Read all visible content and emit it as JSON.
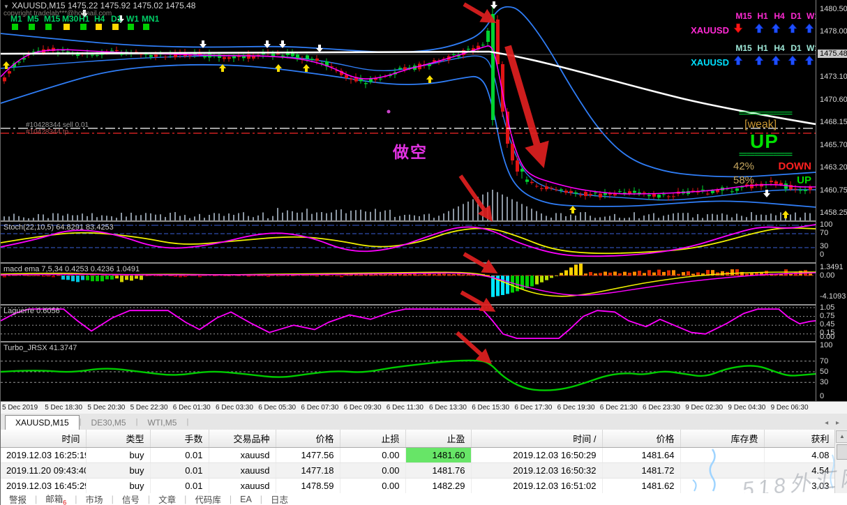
{
  "window": {
    "title": "XAUUSD,M15  1475.22 1475.92 1475.02 1475.48",
    "copyright": "copyright tradelab***@hotmail.com"
  },
  "timeframes": {
    "labels": [
      "M1",
      "M5",
      "M15",
      "M30",
      "H1",
      "H4",
      "D1",
      "W1",
      "MN1"
    ],
    "square_colors": [
      "#00d000",
      "#00d000",
      "#00d000",
      "#ffd700",
      "#00d000",
      "#ffd700",
      "#ffd700",
      "#00d000",
      "#00d000"
    ]
  },
  "chart": {
    "order_line_label": "#10428344 sell 0.01",
    "tp_line_label": "#10428344 tp",
    "short_annotation": "做空",
    "signal_panels": [
      {
        "symbol": "XAUUSD",
        "color": "#ff2ad4",
        "timeframes": [
          "M15",
          "H1",
          "H4",
          "D1",
          "W1"
        ],
        "directions": [
          "down",
          "up",
          "up",
          "up",
          "up"
        ]
      },
      {
        "symbol": "XAUUSD",
        "color": "#00e0ff",
        "timeframes": [
          "M15",
          "H1",
          "H4",
          "D1",
          "W1"
        ],
        "directions": [
          "up",
          "up",
          "up",
          "up",
          "up"
        ]
      }
    ],
    "trend_box": {
      "sep": "==============",
      "weak": "[weak]",
      "main": "UP",
      "down_pct": "42%",
      "down_word": "DOWN",
      "up_pct": "58%",
      "up_word": "UP"
    },
    "price_scale": [
      "1480.50",
      "1478.00",
      "1475.48",
      "1473.10",
      "1470.60",
      "1468.15",
      "1465.70",
      "1463.20",
      "1460.75",
      "1458.25"
    ],
    "current_price": "1475.48"
  },
  "indicators": [
    {
      "label": "Stoch(22,10,5) 64.8291 83.4253",
      "scale": [
        "100",
        "70",
        "30",
        "0"
      ]
    },
    {
      "label": "macd ema 7,5,34 0.4253 0.4236 1.0491",
      "scale": [
        "1.3491",
        "0.00",
        "-4.1093"
      ]
    },
    {
      "label": "Laguerre 0.6056",
      "scale": [
        "1.05",
        "0.75",
        "0.45",
        "0.15",
        "0.00"
      ]
    },
    {
      "label": "Turbo_JRSX 41.3747",
      "scale": [
        "100",
        "70",
        "50",
        "30",
        "0"
      ]
    }
  ],
  "time_axis": [
    "5 Dec 2019",
    "5 Dec 18:30",
    "5 Dec 20:30",
    "5 Dec 22:30",
    "6 Dec 01:30",
    "6 Dec 03:30",
    "6 Dec 05:30",
    "6 Dec 07:30",
    "6 Dec 09:30",
    "6 Dec 11:30",
    "6 Dec 13:30",
    "6 Dec 15:30",
    "6 Dec 17:30",
    "6 Dec 19:30",
    "6 Dec 21:30",
    "6 Dec 23:30",
    "9 Dec 02:30",
    "9 Dec 04:30",
    "9 Dec 06:30"
  ],
  "chart_tabs": [
    {
      "label": "XAUUSD,M15",
      "active": true
    },
    {
      "label": "DE30,M5",
      "active": false
    },
    {
      "label": "WTI,M5",
      "active": false
    }
  ],
  "terminal": {
    "headers": [
      "时间",
      "类型",
      "手数",
      "交易品种",
      "价格",
      "止损",
      "止盈",
      "时间 /",
      "价格",
      "库存费",
      "获利"
    ],
    "rows": [
      {
        "cells": [
          "2019.12.03 16:25:19",
          "buy",
          "0.01",
          "xauusd",
          "1477.56",
          "0.00",
          "1481.60",
          "2019.12.03 16:50:29",
          "1481.64",
          "",
          "4.08"
        ],
        "tp_highlight": true
      },
      {
        "cells": [
          "2019.11.20 09:43:40",
          "buy",
          "0.01",
          "xauusd",
          "1477.18",
          "0.00",
          "1481.76",
          "2019.12.03 16:50:32",
          "1481.72",
          "",
          "4.54"
        ],
        "tp_highlight": false
      },
      {
        "cells": [
          "2019.12.03 16:45:29",
          "buy",
          "0.01",
          "xauusd",
          "1478.59",
          "0.00",
          "1482.29",
          "2019.12.03 16:51:02",
          "1481.62",
          "",
          "3.03"
        ],
        "tp_highlight": false
      }
    ],
    "watermark": "518外汇网"
  },
  "bottom_tabs": {
    "items": [
      "警报",
      "邮箱",
      "市场",
      "信号",
      "文章",
      "代码库",
      "EA",
      "日志"
    ],
    "mail_badge": "6"
  }
}
